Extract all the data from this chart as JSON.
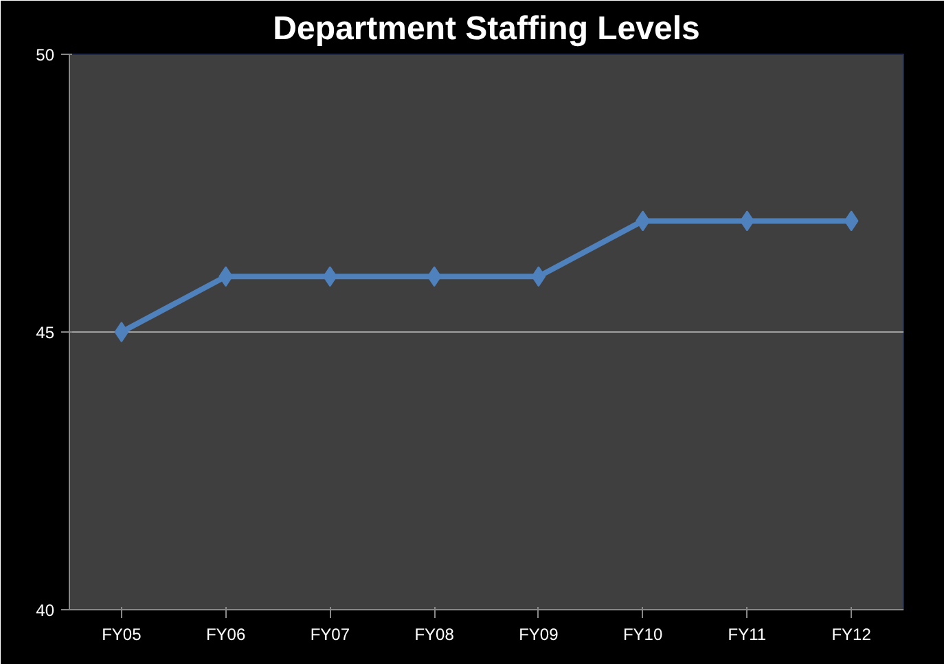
{
  "chart_data": {
    "type": "line",
    "title": "Department Staffing Levels",
    "categories": [
      "FY05",
      "FY06",
      "FY07",
      "FY08",
      "FY09",
      "FY10",
      "FY11",
      "FY12"
    ],
    "series": [
      {
        "color": "#4f81bd",
        "values": [
          45,
          46,
          46,
          46,
          46,
          47,
          47,
          47
        ]
      }
    ],
    "ylim": [
      40,
      50
    ],
    "yticks": [
      40,
      45,
      50
    ],
    "grid": "y",
    "marker": "diamond",
    "line_style": "solid"
  }
}
